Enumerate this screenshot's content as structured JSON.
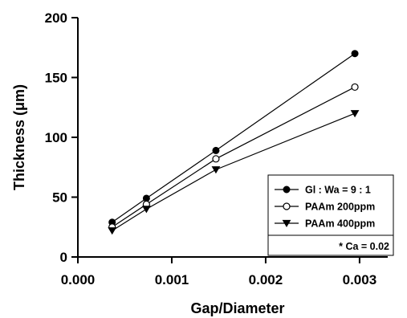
{
  "chart_data": {
    "type": "line",
    "xlabel": "Gap/Diameter",
    "ylabel": "Thickness (μm)",
    "xlim": [
      0.0,
      0.0033
    ],
    "ylim": [
      0,
      200
    ],
    "x_ticks": [
      0.0,
      0.001,
      0.002,
      0.003
    ],
    "x_tick_labels": [
      "0.000",
      "0.001",
      "0.002",
      "0.003"
    ],
    "y_ticks": [
      0,
      50,
      100,
      150,
      200
    ],
    "y_tick_labels": [
      "0",
      "50",
      "100",
      "150",
      "200"
    ],
    "grid": false,
    "legend_position": "bottom-right",
    "series": [
      {
        "name": "Gl : Wa = 9 : 1",
        "marker": "filled-circle",
        "x": [
          0.000365,
          0.00073,
          0.00147,
          0.00295
        ],
        "y": [
          29,
          49,
          89,
          170
        ]
      },
      {
        "name": "PAAm 200ppm",
        "marker": "open-circle",
        "x": [
          0.000365,
          0.00073,
          0.00147,
          0.00295
        ],
        "y": [
          25,
          44,
          82,
          142
        ]
      },
      {
        "name": "PAAm 400ppm",
        "marker": "filled-triangle-down",
        "x": [
          0.000365,
          0.00073,
          0.00147,
          0.00295
        ],
        "y": [
          22,
          40,
          73,
          120
        ]
      }
    ],
    "annotation": "* Ca = 0.02"
  }
}
